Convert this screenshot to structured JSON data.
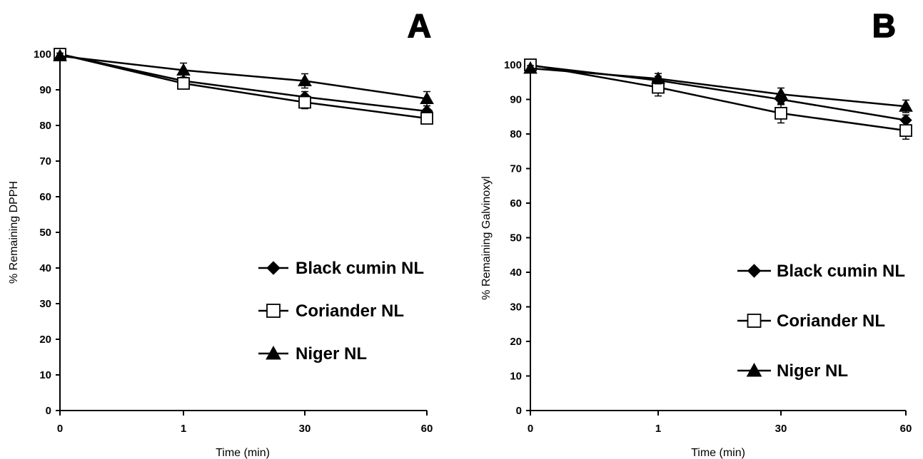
{
  "chart_data": [
    {
      "type": "line",
      "panel_label": "A",
      "categories": [
        "0",
        "1",
        "30",
        "60"
      ],
      "xlabel": "Time (min)",
      "ylabel": "% Remaining DPPH",
      "ylim": [
        0,
        100
      ],
      "yticks": [
        "0",
        "10",
        "20",
        "30",
        "40",
        "50",
        "60",
        "70",
        "80",
        "90",
        "100"
      ],
      "legend_position": "bottom-right",
      "series": [
        {
          "name": "Black cumin NL",
          "marker": "diamond",
          "values": [
            100,
            92.5,
            88,
            84
          ],
          "errors": [
            0.5,
            1.0,
            1.5,
            1.5
          ]
        },
        {
          "name": "Coriander NL",
          "marker": "square-open",
          "values": [
            100,
            91.8,
            86.5,
            82
          ],
          "errors": [
            0.5,
            1.2,
            1.8,
            1.5
          ]
        },
        {
          "name": "Niger NL",
          "marker": "triangle",
          "values": [
            99.5,
            95.5,
            92.5,
            87.5
          ],
          "errors": [
            0.8,
            2.0,
            2.0,
            2.0
          ]
        }
      ]
    },
    {
      "type": "line",
      "panel_label": "B",
      "categories": [
        "0",
        "1",
        "30",
        "60"
      ],
      "xlabel": "Time (min)",
      "ylabel": "% Remaining Galvinoxyl",
      "ylim": [
        0,
        100
      ],
      "yticks": [
        "0",
        "10",
        "20",
        "30",
        "40",
        "50",
        "60",
        "70",
        "80",
        "90",
        "100"
      ],
      "legend_position": "bottom-right",
      "series": [
        {
          "name": "Black cumin NL",
          "marker": "diamond",
          "values": [
            99.8,
            95.5,
            90,
            84
          ],
          "errors": [
            0.5,
            1.2,
            1.5,
            1.5
          ]
        },
        {
          "name": "Coriander NL",
          "marker": "square-open",
          "values": [
            100,
            93.5,
            86,
            81
          ],
          "errors": [
            0.5,
            2.5,
            2.8,
            2.5
          ]
        },
        {
          "name": "Niger NL",
          "marker": "triangle",
          "values": [
            99,
            96,
            91.5,
            88
          ],
          "errors": [
            0.8,
            1.5,
            1.8,
            1.8
          ]
        }
      ]
    }
  ]
}
